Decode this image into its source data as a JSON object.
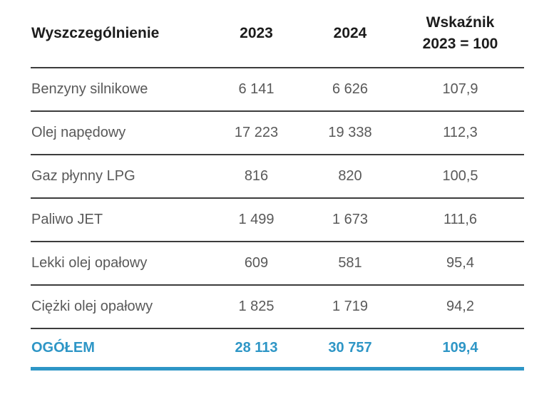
{
  "accent_color": "#2e96c6",
  "rule_color": "#3c3c3c",
  "table": {
    "headers": {
      "col1": "Wyszczególnienie",
      "col2": "2023",
      "col3": "2024",
      "col4_line1": "Wskaźnik",
      "col4_line2": "2023 = 100"
    },
    "rows": [
      {
        "label": "Benzyny silnikowe",
        "v2023": "6 141",
        "v2024": "6 626",
        "index": "107,9"
      },
      {
        "label": "Olej napędowy",
        "v2023": "17 223",
        "v2024": "19 338",
        "index": "112,3"
      },
      {
        "label": "Gaz płynny LPG",
        "v2023": "816",
        "v2024": "820",
        "index": "100,5"
      },
      {
        "label": "Paliwo JET",
        "v2023": "1 499",
        "v2024": "1 673",
        "index": "111,6"
      },
      {
        "label": "Lekki olej opałowy",
        "v2023": "609",
        "v2024": "581",
        "index": "95,4"
      },
      {
        "label": "Ciężki olej opałowy",
        "v2023": "1 825",
        "v2024": "1 719",
        "index": "94,2"
      }
    ],
    "total": {
      "label": "OGÓŁEM",
      "v2023": "28 113",
      "v2024": "30 757",
      "index": "109,4"
    }
  },
  "chart_data": {
    "type": "table",
    "columns": [
      "Wyszczególnienie",
      "2023",
      "2024",
      "Wskaźnik 2023 = 100"
    ],
    "rows": [
      [
        "Benzyny silnikowe",
        6141,
        6626,
        107.9
      ],
      [
        "Olej napędowy",
        17223,
        19338,
        112.3
      ],
      [
        "Gaz płynny LPG",
        816,
        820,
        100.5
      ],
      [
        "Paliwo JET",
        1499,
        1673,
        111.6
      ],
      [
        "Lekki olej opałowy",
        609,
        581,
        95.4
      ],
      [
        "Ciężki olej opałowy",
        1825,
        1719,
        94.2
      ],
      [
        "OGÓŁEM",
        28113,
        30757,
        109.4
      ]
    ],
    "notes": "values with space thousand separators and decimal commas as displayed; OGÓŁEM is total row highlighted in blue #2e96c6"
  }
}
